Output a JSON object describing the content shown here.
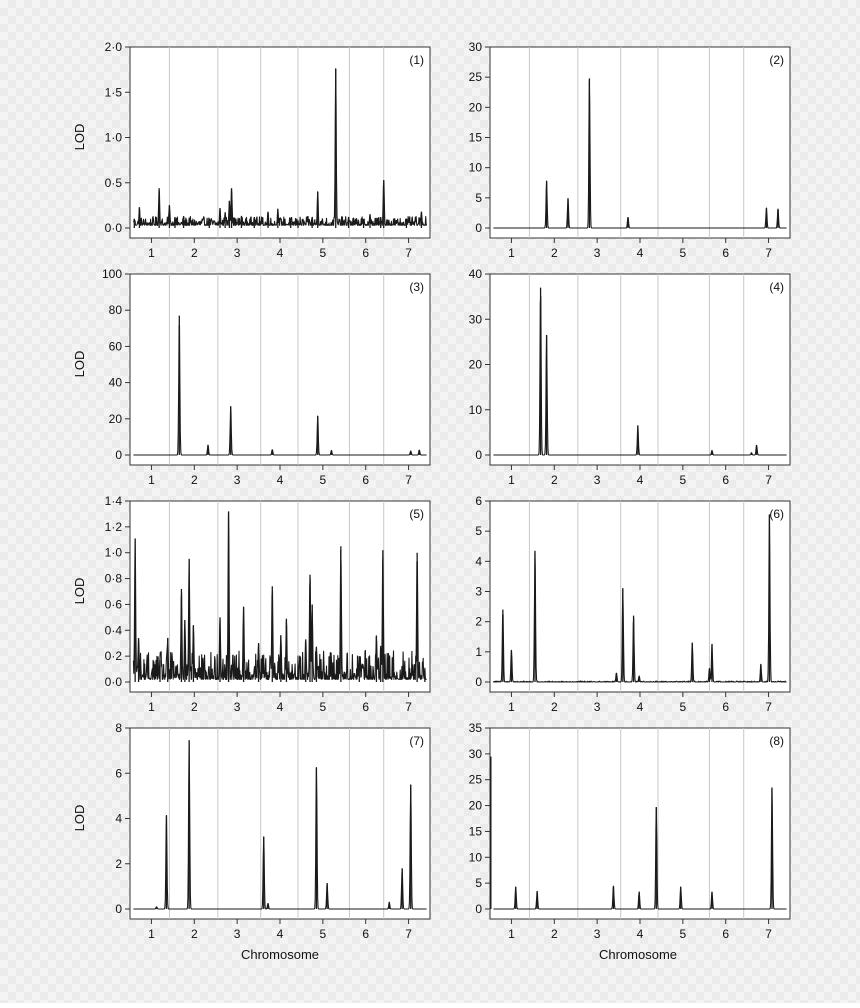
{
  "figure": {
    "left_ylabel": "LOD",
    "bottom_xlabel": "Chromosome",
    "colors": {
      "trace": "#1a1a1a",
      "divider": "#c8c8c8",
      "axis": "#333333"
    }
  },
  "chart_data": [
    {
      "type": "line",
      "panel_label": "(1)",
      "ylim": [
        0,
        2.0
      ],
      "yticks": [
        "0·0",
        "0·5",
        "1·0",
        "1·5",
        "2·0"
      ],
      "ytick_values": [
        0,
        0.5,
        1.0,
        1.5,
        2.0
      ],
      "xticks": [
        "1",
        "2",
        "3",
        "4",
        "5",
        "6",
        "7"
      ],
      "xtick_values": [
        1,
        2,
        3,
        4,
        5,
        6,
        7
      ],
      "xlim": [
        0.5,
        7.5
      ],
      "chromosome_boundaries": [
        1.42,
        2.55,
        3.55,
        4.42,
        5.62,
        6.42
      ],
      "baseline": 0.03,
      "noise_amplitude": 0.06,
      "peaks": [
        [
          0.6,
          0.1
        ],
        [
          0.72,
          0.23
        ],
        [
          1.18,
          0.44
        ],
        [
          1.42,
          0.25
        ],
        [
          1.55,
          0.12
        ],
        [
          1.75,
          0.13
        ],
        [
          2.35,
          0.1
        ],
        [
          2.6,
          0.22
        ],
        [
          2.72,
          0.17
        ],
        [
          2.82,
          0.3
        ],
        [
          2.87,
          0.44
        ],
        [
          3.1,
          0.13
        ],
        [
          3.4,
          0.12
        ],
        [
          3.72,
          0.18
        ],
        [
          3.95,
          0.21
        ],
        [
          4.25,
          0.08
        ],
        [
          4.42,
          0.08
        ],
        [
          4.75,
          0.12
        ],
        [
          4.88,
          0.4
        ],
        [
          5.3,
          1.76
        ],
        [
          5.6,
          0.12
        ],
        [
          5.95,
          0.1
        ],
        [
          6.1,
          0.15
        ],
        [
          6.35,
          0.12
        ],
        [
          6.42,
          0.53
        ],
        [
          6.95,
          0.1
        ],
        [
          7.3,
          0.18
        ]
      ]
    },
    {
      "type": "line",
      "panel_label": "(2)",
      "ylim": [
        0,
        30
      ],
      "yticks": [
        "0",
        "5",
        "10",
        "15",
        "20",
        "25",
        "30"
      ],
      "ytick_values": [
        0,
        5,
        10,
        15,
        20,
        25,
        30
      ],
      "xticks": [
        "1",
        "2",
        "3",
        "4",
        "5",
        "6",
        "7"
      ],
      "xtick_values": [
        1,
        2,
        3,
        4,
        5,
        6,
        7
      ],
      "xlim": [
        0.5,
        7.5
      ],
      "chromosome_boundaries": [
        1.42,
        2.55,
        3.55,
        4.42,
        5.62,
        6.42
      ],
      "baseline": 0,
      "noise_amplitude": 0,
      "peaks": [
        [
          1.82,
          7.8
        ],
        [
          2.32,
          4.9
        ],
        [
          2.82,
          24.8
        ],
        [
          3.72,
          1.8
        ],
        [
          6.95,
          3.3
        ],
        [
          7.22,
          3.2
        ]
      ]
    },
    {
      "type": "line",
      "panel_label": "(3)",
      "ylim": [
        0,
        100
      ],
      "yticks": [
        "0",
        "20",
        "40",
        "60",
        "80",
        "100"
      ],
      "ytick_values": [
        0,
        20,
        40,
        60,
        80,
        100
      ],
      "xticks": [
        "1",
        "2",
        "3",
        "4",
        "5",
        "6",
        "7"
      ],
      "xtick_values": [
        1,
        2,
        3,
        4,
        5,
        6,
        7
      ],
      "xlim": [
        0.5,
        7.5
      ],
      "chromosome_boundaries": [
        1.42,
        2.55,
        3.55,
        4.42,
        5.62,
        6.42
      ],
      "baseline": 0,
      "noise_amplitude": 0,
      "peaks": [
        [
          1.65,
          77
        ],
        [
          2.32,
          5.5
        ],
        [
          2.85,
          27
        ],
        [
          3.82,
          3
        ],
        [
          4.88,
          21.5
        ],
        [
          5.2,
          2.5
        ],
        [
          7.05,
          2.2
        ],
        [
          7.25,
          2.8
        ]
      ]
    },
    {
      "type": "line",
      "panel_label": "(4)",
      "ylim": [
        0,
        40
      ],
      "yticks": [
        "0",
        "10",
        "20",
        "30",
        "40"
      ],
      "ytick_values": [
        0,
        10,
        20,
        30,
        40
      ],
      "xticks": [
        "1",
        "2",
        "3",
        "4",
        "5",
        "6",
        "7"
      ],
      "xtick_values": [
        1,
        2,
        3,
        4,
        5,
        6,
        7
      ],
      "xlim": [
        0.5,
        7.5
      ],
      "chromosome_boundaries": [
        1.42,
        2.55,
        3.55,
        4.42,
        5.62,
        6.42
      ],
      "baseline": 0,
      "noise_amplitude": 0,
      "peaks": [
        [
          1.68,
          37
        ],
        [
          1.82,
          26.5
        ],
        [
          3.95,
          6.5
        ],
        [
          5.68,
          1.0
        ],
        [
          6.6,
          0.5
        ],
        [
          6.72,
          2.2
        ]
      ]
    },
    {
      "type": "line",
      "panel_label": "(5)",
      "ylim": [
        0,
        1.4
      ],
      "yticks": [
        "0·0",
        "0·2",
        "0·4",
        "0·6",
        "0·8",
        "1·0",
        "1·2",
        "1·4"
      ],
      "ytick_values": [
        0,
        0.2,
        0.4,
        0.6,
        0.8,
        1.0,
        1.2,
        1.4
      ],
      "xticks": [
        "1",
        "2",
        "3",
        "4",
        "5",
        "6",
        "7"
      ],
      "xtick_values": [
        1,
        2,
        3,
        4,
        5,
        6,
        7
      ],
      "xlim": [
        0.5,
        7.5
      ],
      "chromosome_boundaries": [
        1.42,
        2.55,
        3.55,
        4.42,
        5.62,
        6.42
      ],
      "baseline": 0.02,
      "noise_amplitude": 0.14,
      "peaks": [
        [
          0.62,
          1.11
        ],
        [
          0.7,
          0.34
        ],
        [
          1.2,
          0.17
        ],
        [
          1.38,
          0.34
        ],
        [
          1.7,
          0.72
        ],
        [
          1.78,
          0.48
        ],
        [
          1.88,
          0.95
        ],
        [
          1.98,
          0.44
        ],
        [
          2.6,
          0.5
        ],
        [
          2.8,
          1.32
        ],
        [
          3.15,
          0.58
        ],
        [
          3.5,
          0.3
        ],
        [
          3.82,
          0.74
        ],
        [
          4.02,
          0.36
        ],
        [
          4.15,
          0.49
        ],
        [
          4.6,
          0.33
        ],
        [
          4.7,
          0.83
        ],
        [
          4.75,
          0.6
        ],
        [
          4.85,
          0.27
        ],
        [
          5.42,
          1.05
        ],
        [
          5.85,
          0.2
        ],
        [
          6.25,
          0.36
        ],
        [
          6.35,
          0.28
        ],
        [
          6.4,
          1.02
        ],
        [
          7.2,
          1.0
        ],
        [
          7.38,
          0.05
        ]
      ]
    },
    {
      "type": "line",
      "panel_label": "(6)",
      "ylim": [
        0,
        6
      ],
      "yticks": [
        "0",
        "1",
        "2",
        "3",
        "4",
        "5",
        "6"
      ],
      "ytick_values": [
        0,
        1,
        2,
        3,
        4,
        5,
        6
      ],
      "xticks": [
        "1",
        "2",
        "3",
        "4",
        "5",
        "6",
        "7"
      ],
      "xtick_values": [
        1,
        2,
        3,
        4,
        5,
        6,
        7
      ],
      "xlim": [
        0.5,
        7.5
      ],
      "chromosome_boundaries": [
        1.42,
        2.55,
        3.55,
        4.42,
        5.62,
        6.42
      ],
      "baseline": 0,
      "noise_amplitude": 0.02,
      "peaks": [
        [
          0.8,
          2.4
        ],
        [
          1.0,
          1.05
        ],
        [
          1.55,
          4.35
        ],
        [
          3.45,
          0.3
        ],
        [
          3.6,
          3.1
        ],
        [
          3.85,
          2.2
        ],
        [
          3.98,
          0.2
        ],
        [
          5.22,
          1.3
        ],
        [
          5.62,
          0.45
        ],
        [
          5.68,
          1.25
        ],
        [
          6.82,
          0.6
        ],
        [
          7.02,
          5.55
        ]
      ]
    },
    {
      "type": "line",
      "panel_label": "(7)",
      "ylim": [
        0,
        8
      ],
      "yticks": [
        "0",
        "2",
        "4",
        "6",
        "8"
      ],
      "ytick_values": [
        0,
        2,
        4,
        6,
        8
      ],
      "xticks": [
        "1",
        "2",
        "3",
        "4",
        "5",
        "6",
        "7"
      ],
      "xtick_values": [
        1,
        2,
        3,
        4,
        5,
        6,
        7
      ],
      "xlim": [
        0.5,
        7.5
      ],
      "chromosome_boundaries": [
        1.42,
        2.55,
        3.55,
        4.42,
        5.62,
        6.42
      ],
      "baseline": 0,
      "noise_amplitude": 0,
      "peaks": [
        [
          1.12,
          0.1
        ],
        [
          1.35,
          4.15
        ],
        [
          1.88,
          7.45
        ],
        [
          3.62,
          3.2
        ],
        [
          3.72,
          0.25
        ],
        [
          4.85,
          6.25
        ],
        [
          5.1,
          1.15
        ],
        [
          6.55,
          0.3
        ],
        [
          6.85,
          1.8
        ],
        [
          7.05,
          5.5
        ]
      ]
    },
    {
      "type": "line",
      "panel_label": "(8)",
      "ylim": [
        0,
        35
      ],
      "yticks": [
        "0",
        "5",
        "10",
        "15",
        "20",
        "25",
        "30",
        "35"
      ],
      "ytick_values": [
        0,
        5,
        10,
        15,
        20,
        25,
        30,
        35
      ],
      "xticks": [
        "1",
        "2",
        "3",
        "4",
        "5",
        "6",
        "7"
      ],
      "xtick_values": [
        1,
        2,
        3,
        4,
        5,
        6,
        7
      ],
      "xlim": [
        0.5,
        7.5
      ],
      "chromosome_boundaries": [
        1.42,
        2.55,
        3.55,
        4.42,
        5.62,
        6.42
      ],
      "baseline": 0,
      "noise_amplitude": 0,
      "peaks": [
        [
          0.52,
          29.5
        ],
        [
          1.1,
          4.3
        ],
        [
          1.6,
          3.5
        ],
        [
          3.38,
          4.5
        ],
        [
          3.98,
          3.3
        ],
        [
          4.38,
          19.7
        ],
        [
          4.95,
          4.3
        ],
        [
          5.68,
          3.3
        ],
        [
          7.08,
          23.5
        ]
      ]
    }
  ]
}
